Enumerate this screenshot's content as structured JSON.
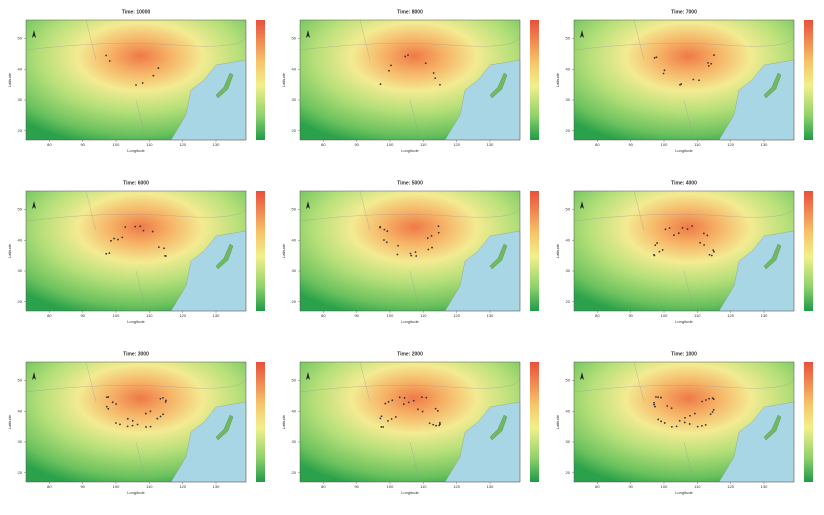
{
  "panels": [
    {
      "title": "Time: 10000"
    },
    {
      "title": "Time: 8000"
    },
    {
      "title": "Time: 7000"
    },
    {
      "title": "Time: 6000"
    },
    {
      "title": "Time: 5000"
    },
    {
      "title": "Time: 4000"
    },
    {
      "title": "Time: 3000"
    },
    {
      "title": "Time: 2000"
    },
    {
      "title": "Time: 1000"
    }
  ],
  "axes": {
    "x_label": "Longitude",
    "y_label": "Latitude",
    "x_ticks": [
      80,
      90,
      100,
      110,
      120,
      130
    ],
    "y_ticks": [
      20,
      30,
      40,
      50
    ]
  }
}
